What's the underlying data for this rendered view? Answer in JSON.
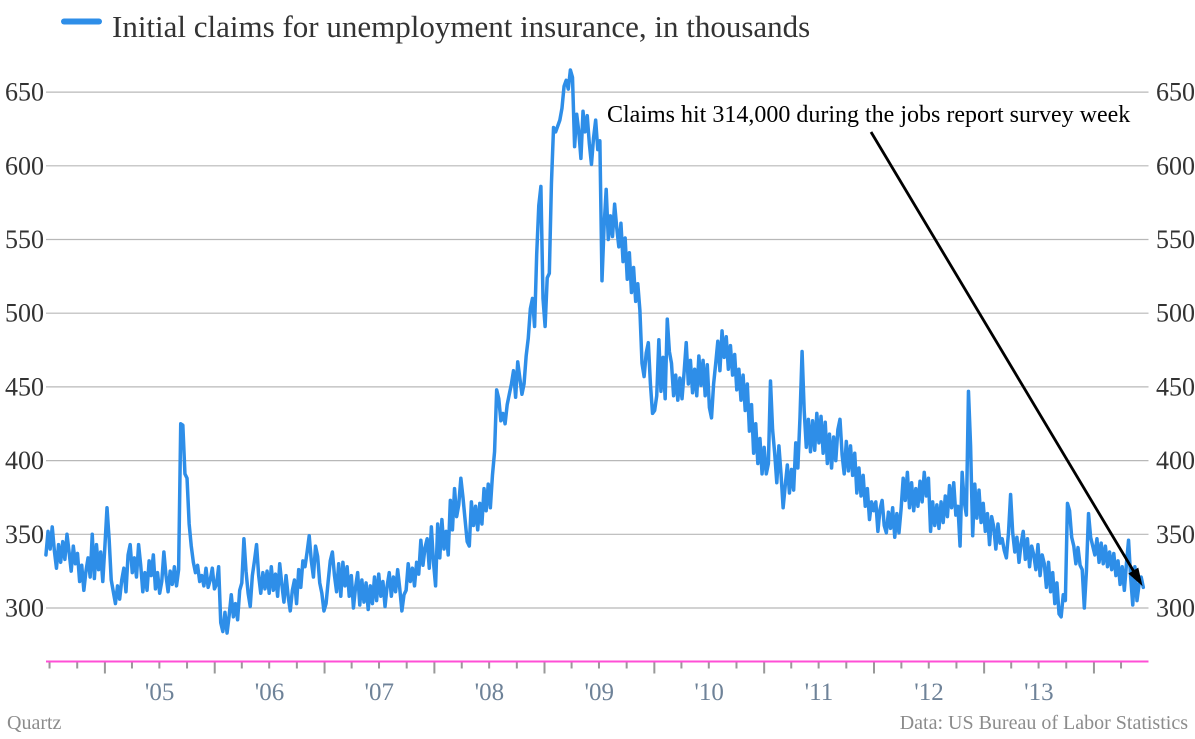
{
  "chart_data": {
    "type": "line",
    "title": "Initial claims for unemployment insurance, in thousands",
    "unit": "thousands",
    "x_first_week_ending": "2004-06-19",
    "x_step_days": 7,
    "values": [
      336,
      352,
      340,
      355,
      339,
      327,
      343,
      331,
      345,
      333,
      350,
      338,
      325,
      342,
      330,
      337,
      318,
      329,
      312,
      325,
      334,
      321,
      350,
      320,
      343,
      326,
      338,
      318,
      342,
      368,
      347,
      319,
      311,
      303,
      315,
      306,
      319,
      327,
      311,
      336,
      343,
      324,
      334,
      321,
      343,
      329,
      311,
      324,
      312,
      332,
      322,
      336,
      313,
      324,
      310,
      318,
      338,
      322,
      311,
      325,
      316,
      328,
      315,
      326,
      425,
      424,
      391,
      388,
      357,
      342,
      331,
      324,
      329,
      318,
      322,
      315,
      327,
      314,
      319,
      327,
      313,
      316,
      328,
      290,
      284,
      297,
      283,
      295,
      309,
      294,
      303,
      292,
      312,
      317,
      347,
      325,
      310,
      301,
      322,
      332,
      343,
      322,
      310,
      324,
      313,
      325,
      310,
      328,
      312,
      323,
      308,
      330,
      316,
      304,
      322,
      308,
      298,
      312,
      319,
      303,
      326,
      314,
      332,
      328,
      338,
      349,
      332,
      321,
      342,
      335,
      317,
      310,
      298,
      303,
      318,
      332,
      338,
      322,
      311,
      330,
      308,
      331,
      315,
      328,
      308,
      322,
      300,
      314,
      324,
      302,
      319,
      304,
      317,
      299,
      315,
      303,
      321,
      305,
      323,
      308,
      318,
      301,
      315,
      324,
      308,
      321,
      311,
      326,
      313,
      298,
      309,
      312,
      330,
      318,
      327,
      315,
      331,
      323,
      346,
      329,
      341,
      347,
      327,
      355,
      331,
      315,
      357,
      334,
      360,
      340,
      352,
      336,
      373,
      353,
      381,
      362,
      370,
      388,
      375,
      360,
      345,
      342,
      372,
      356,
      369,
      353,
      371,
      357,
      381,
      366,
      384,
      368,
      390,
      406,
      448,
      442,
      427,
      432,
      425,
      438,
      445,
      452,
      461,
      443,
      467,
      456,
      445,
      452,
      471,
      483,
      503,
      510,
      491,
      540,
      573,
      586,
      510,
      491,
      524,
      527,
      588,
      626,
      623,
      627,
      631,
      639,
      654,
      658,
      652,
      665,
      660,
      613,
      635,
      623,
      605,
      637,
      623,
      634,
      615,
      601,
      619,
      631,
      611,
      617,
      522,
      559,
      584,
      550,
      566,
      552,
      574,
      558,
      545,
      561,
      535,
      551,
      523,
      541,
      514,
      531,
      508,
      520,
      502,
      466,
      457,
      473,
      480,
      452,
      432,
      434,
      444,
      482,
      447,
      470,
      442,
      496,
      474,
      466,
      444,
      458,
      441,
      456,
      442,
      460,
      480,
      452,
      468,
      446,
      462,
      444,
      471,
      451,
      468,
      444,
      465,
      436,
      429,
      452,
      466,
      481,
      461,
      488,
      470,
      484,
      462,
      478,
      458,
      472,
      448,
      462,
      441,
      458,
      434,
      452,
      420,
      438,
      405,
      425,
      398,
      415,
      391,
      409,
      391,
      398,
      454,
      421,
      405,
      385,
      410,
      391,
      368,
      383,
      397,
      378,
      394,
      380,
      412,
      395,
      429,
      474,
      434,
      409,
      428,
      406,
      427,
      407,
      432,
      412,
      430,
      405,
      426,
      398,
      418,
      395,
      416,
      400,
      421,
      428,
      404,
      391,
      413,
      393,
      410,
      390,
      405,
      378,
      395,
      376,
      390,
      369,
      381,
      360,
      372,
      366,
      372,
      352,
      367,
      373,
      356,
      351,
      365,
      354,
      368,
      348,
      364,
      351,
      367,
      388,
      373,
      392,
      368,
      385,
      366,
      381,
      369,
      386,
      372,
      392,
      376,
      388,
      352,
      372,
      356,
      370,
      354,
      372,
      358,
      376,
      362,
      383,
      368,
      385,
      363,
      369,
      342,
      392,
      372,
      363,
      447,
      410,
      349,
      384,
      361,
      380,
      358,
      371,
      352,
      364,
      343,
      362,
      355,
      340,
      357,
      344,
      347,
      339,
      334,
      351,
      377,
      351,
      338,
      348,
      331,
      344,
      352,
      333,
      347,
      328,
      342,
      336,
      326,
      343,
      322,
      336,
      330,
      314,
      331,
      311,
      324,
      303,
      317,
      296,
      294,
      309,
      305,
      371,
      366,
      348,
      342,
      330,
      341,
      329,
      326,
      300,
      325,
      364,
      348,
      342,
      336,
      347,
      331,
      344,
      330,
      342,
      328,
      338,
      326,
      337,
      322,
      332,
      316,
      328,
      312,
      330,
      346,
      321,
      302,
      328,
      305,
      316,
      321,
      314
    ],
    "y_ticks": [
      300,
      350,
      400,
      450,
      500,
      550,
      600,
      650
    ],
    "x_tick_labels": [
      "'05",
      "'06",
      "'07",
      "'08",
      "'09",
      "'10",
      "'11",
      "'12",
      "'13"
    ],
    "x_tick_years": [
      2005,
      2006,
      2007,
      2008,
      2009,
      2010,
      2011,
      2012,
      2013
    ],
    "legend_position": "top-left",
    "grid": "horizontal",
    "annotation": {
      "text": "Claims hit 314,000 during the jobs report survey week",
      "points_to_value": 314
    }
  },
  "footer": {
    "left": "Quartz",
    "right": "Data: US Bureau of Labor Statistics"
  },
  "colors": {
    "line": "#2e8ee8",
    "axis_baseline": "#ff4fd6",
    "gridline": "#b8b8b8",
    "tick": "#999999",
    "y_label": "#333333",
    "x_label": "#6e8298",
    "title": "#333333",
    "annotation": "#000000",
    "footer": "#8c8c8c",
    "background": "#ffffff"
  }
}
